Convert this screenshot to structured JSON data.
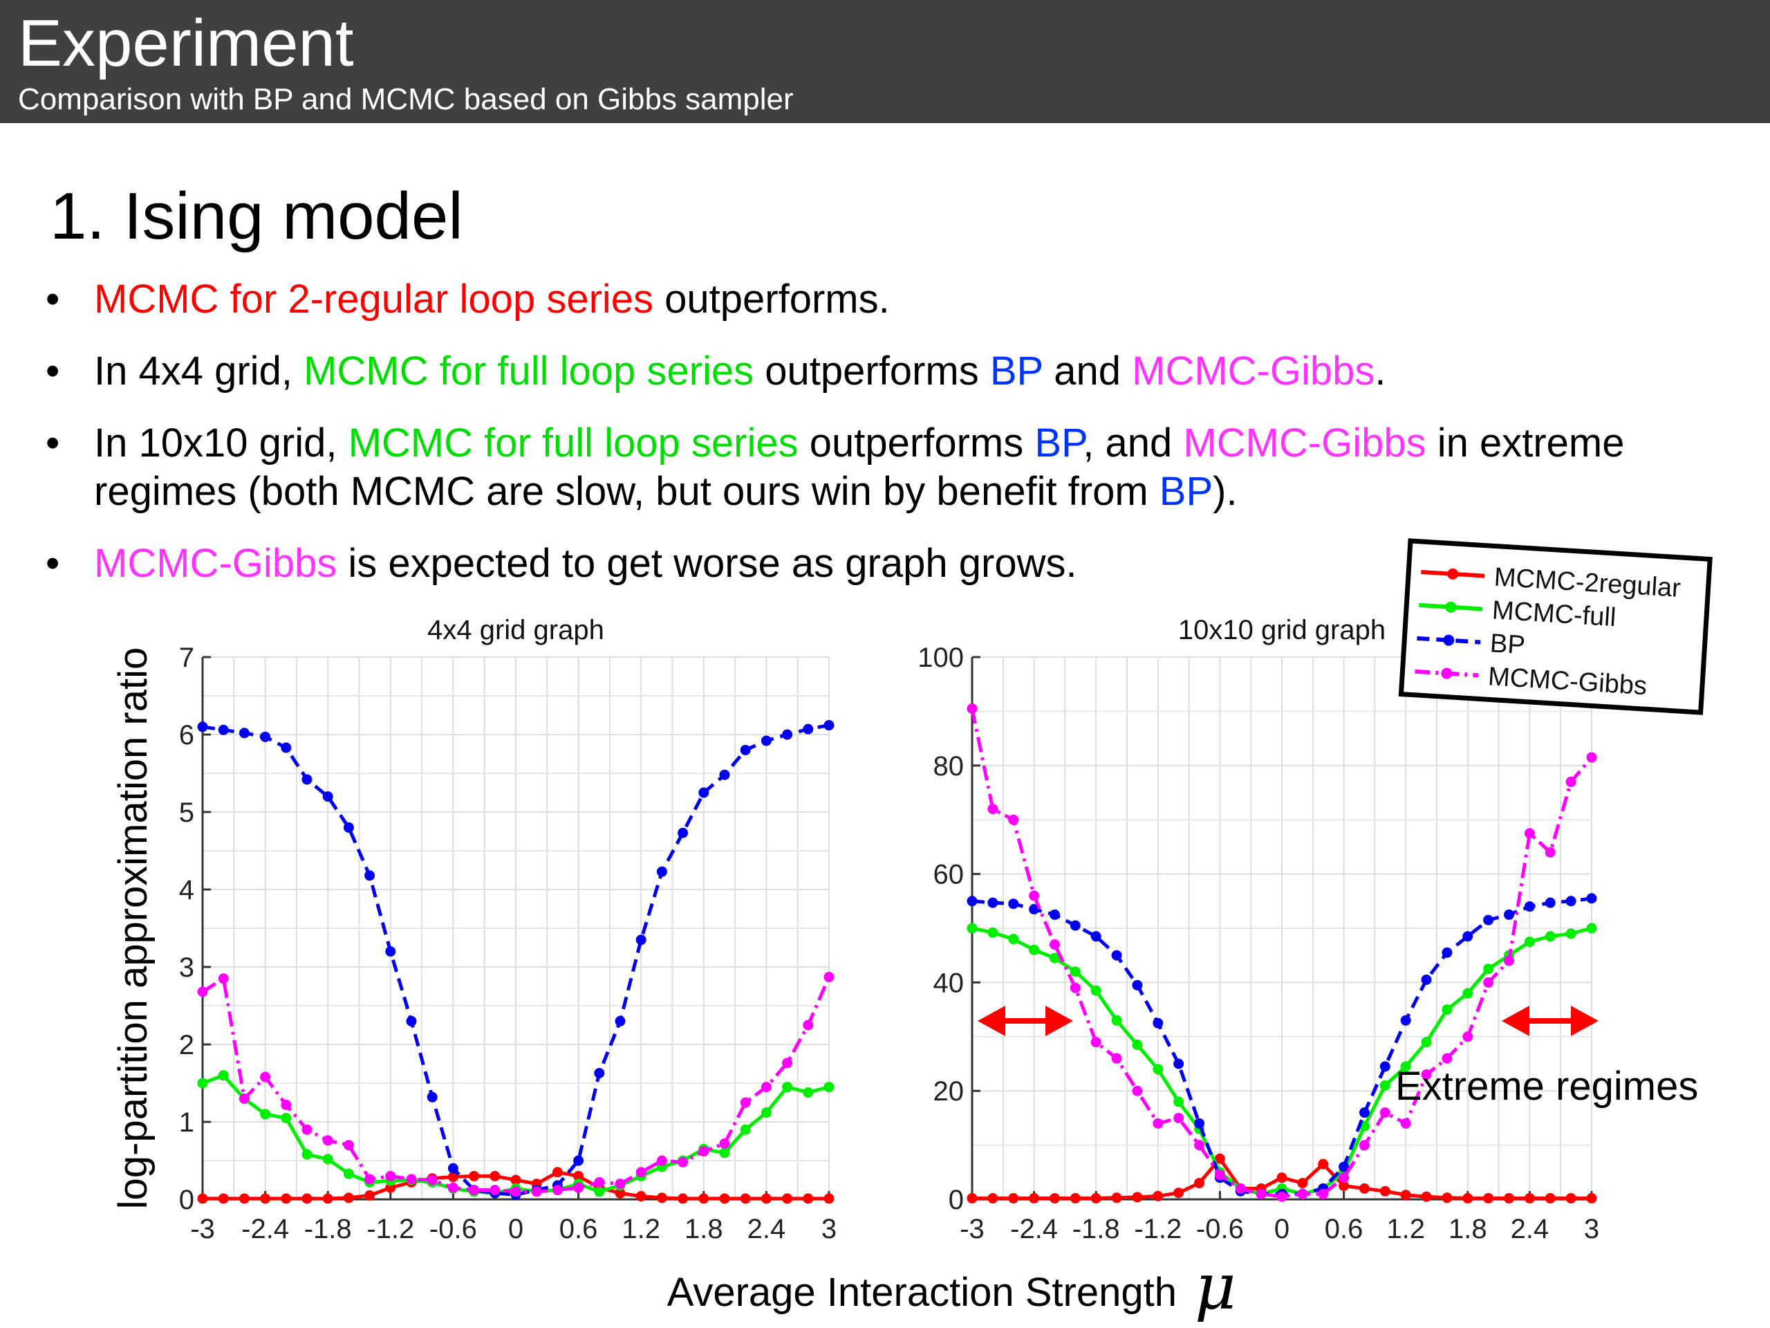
{
  "header": {
    "title": "Experiment",
    "subtitle": "Comparison with BP and MCMC based on Gibbs sampler"
  },
  "section_title": "1.  Ising model",
  "bullets": [
    [
      {
        "text": "MCMC for 2-regular loop series",
        "color": "#ff0000"
      },
      {
        "text": " outperforms.",
        "color": "#000000"
      }
    ],
    [
      {
        "text": "In 4x4 grid, ",
        "color": "#000000"
      },
      {
        "text": "MCMC for full loop series",
        "color": "#00dd00"
      },
      {
        "text": " outperforms ",
        "color": "#000000"
      },
      {
        "text": "BP",
        "color": "#0033ff"
      },
      {
        "text": " and ",
        "color": "#000000"
      },
      {
        "text": "MCMC-Gibbs",
        "color": "#ff33ff"
      },
      {
        "text": ".",
        "color": "#000000"
      }
    ],
    [
      {
        "text": "In 10x10 grid, ",
        "color": "#000000"
      },
      {
        "text": "MCMC for full loop series",
        "color": "#00dd00"
      },
      {
        "text": " outperforms ",
        "color": "#000000"
      },
      {
        "text": "BP",
        "color": "#0033ff"
      },
      {
        "text": ", and ",
        "color": "#000000"
      },
      {
        "text": "MCMC-Gibbs",
        "color": "#ff33ff"
      },
      {
        "text": " in extreme regimes (both MCMC are slow, but ours win by benefit from ",
        "color": "#000000"
      },
      {
        "text": "BP",
        "color": "#0033ff"
      },
      {
        "text": ").",
        "color": "#000000"
      }
    ],
    [
      {
        "text": "MCMC-Gibbs",
        "color": "#ff33ff"
      },
      {
        "text": " is expected to get worse as graph grows.",
        "color": "#000000"
      }
    ]
  ],
  "colors": {
    "MCMC-2regular": "#ff0000",
    "MCMC-full": "#00ee00",
    "BP": "#0000ee",
    "MCMC-Gibbs": "#ff00ff",
    "arrow": "#ff0000"
  },
  "legend": {
    "placement": "top-right",
    "entries": [
      "MCMC-2regular",
      "MCMC-full",
      "BP",
      "MCMC-Gibbs"
    ]
  },
  "shared_ylabel": "log-partition approximation ratio",
  "shared_xlabel": "Average Interaction Strength",
  "shared_xlabel_symbol": "μ",
  "annotation": "Extreme regimes",
  "chart_data": [
    {
      "type": "line",
      "title": "4x4 grid graph",
      "xlabel": "Average Interaction Strength μ",
      "ylabel": "log-partition approximation ratio",
      "xlim": [
        -3,
        3
      ],
      "ylim": [
        0,
        7
      ],
      "grid": true,
      "x_ticks": [
        "-3",
        "-2.4",
        "-1.8",
        "-1.2",
        "-0.6",
        "0",
        "0.6",
        "1.2",
        "1.8",
        "2.4",
        "3"
      ],
      "y_ticks": [
        "0",
        "1",
        "2",
        "3",
        "4",
        "5",
        "6",
        "7"
      ],
      "x": [
        -3,
        -2.8,
        -2.6,
        -2.4,
        -2.2,
        -2.0,
        -1.8,
        -1.6,
        -1.4,
        -1.2,
        -1.0,
        -0.8,
        -0.6,
        -0.4,
        -0.2,
        0,
        0.2,
        0.4,
        0.6,
        0.8,
        1.0,
        1.2,
        1.4,
        1.6,
        1.8,
        2.0,
        2.2,
        2.4,
        2.6,
        2.8,
        3.0
      ],
      "series": [
        {
          "name": "MCMC-2regular",
          "style": "solid",
          "values": [
            0.01,
            0.01,
            0.01,
            0.01,
            0.01,
            0.01,
            0.01,
            0.02,
            0.05,
            0.15,
            0.22,
            0.27,
            0.29,
            0.3,
            0.3,
            0.25,
            0.2,
            0.35,
            0.3,
            0.15,
            0.08,
            0.04,
            0.02,
            0.01,
            0.01,
            0.01,
            0.01,
            0.01,
            0.01,
            0.01,
            0.01
          ]
        },
        {
          "name": "MCMC-full",
          "style": "solid",
          "values": [
            1.5,
            1.6,
            1.3,
            1.1,
            1.05,
            0.58,
            0.52,
            0.33,
            0.22,
            0.24,
            0.25,
            0.22,
            0.14,
            0.1,
            0.08,
            0.14,
            0.1,
            0.12,
            0.2,
            0.1,
            0.18,
            0.3,
            0.42,
            0.5,
            0.65,
            0.6,
            0.9,
            1.12,
            1.45,
            1.38,
            1.45
          ]
        },
        {
          "name": "BP",
          "style": "dashed",
          "values": [
            6.1,
            6.06,
            6.02,
            5.97,
            5.83,
            5.42,
            5.2,
            4.8,
            4.18,
            3.2,
            2.3,
            1.32,
            0.4,
            0.12,
            0.08,
            0.06,
            0.12,
            0.18,
            0.5,
            1.63,
            2.3,
            3.35,
            4.23,
            4.73,
            5.25,
            5.48,
            5.8,
            5.92,
            6.0,
            6.07,
            6.12
          ]
        },
        {
          "name": "MCMC-Gibbs",
          "style": "dashed",
          "values": [
            2.68,
            2.85,
            1.3,
            1.58,
            1.22,
            0.9,
            0.76,
            0.7,
            0.26,
            0.3,
            0.26,
            0.25,
            0.15,
            0.12,
            0.12,
            0.1,
            0.1,
            0.12,
            0.15,
            0.22,
            0.2,
            0.35,
            0.5,
            0.48,
            0.62,
            0.72,
            1.25,
            1.45,
            1.76,
            2.25,
            2.87
          ]
        }
      ]
    },
    {
      "type": "line",
      "title": "10x10 grid graph",
      "xlabel": "Average Interaction Strength μ",
      "ylabel": "",
      "xlim": [
        -3,
        3
      ],
      "ylim": [
        0,
        100
      ],
      "grid": true,
      "x_ticks": [
        "-3",
        "-2.4",
        "-1.8",
        "-1.2",
        "-0.6",
        "0",
        "0.6",
        "1.2",
        "1.8",
        "2.4",
        "3"
      ],
      "y_ticks": [
        "0",
        "20",
        "40",
        "60",
        "80",
        "100"
      ],
      "x": [
        -3,
        -2.8,
        -2.6,
        -2.4,
        -2.2,
        -2.0,
        -1.8,
        -1.6,
        -1.4,
        -1.2,
        -1.0,
        -0.8,
        -0.6,
        -0.4,
        -0.2,
        0,
        0.2,
        0.4,
        0.6,
        0.8,
        1.0,
        1.2,
        1.4,
        1.6,
        1.8,
        2.0,
        2.2,
        2.4,
        2.6,
        2.8,
        3.0
      ],
      "series": [
        {
          "name": "MCMC-2regular",
          "style": "solid",
          "values": [
            0.2,
            0.2,
            0.2,
            0.2,
            0.2,
            0.2,
            0.2,
            0.3,
            0.4,
            0.6,
            1.2,
            3.0,
            7.5,
            2.0,
            2.0,
            4.0,
            3.0,
            6.5,
            2.5,
            2.0,
            1.5,
            0.8,
            0.5,
            0.3,
            0.2,
            0.2,
            0.2,
            0.2,
            0.2,
            0.2,
            0.2
          ]
        },
        {
          "name": "MCMC-full",
          "style": "solid",
          "values": [
            50,
            49.2,
            48,
            46,
            44.5,
            42,
            38.5,
            33,
            28.5,
            24,
            18,
            13,
            5,
            2,
            1,
            2,
            1,
            2,
            5,
            13.5,
            21,
            24.5,
            29,
            35,
            38,
            42.5,
            45,
            47.5,
            48.5,
            49,
            50
          ]
        },
        {
          "name": "BP",
          "style": "dashed",
          "values": [
            55,
            54.7,
            54.5,
            53.5,
            52.5,
            50.5,
            48.5,
            45,
            39.5,
            32.5,
            25,
            14,
            4,
            1.5,
            1,
            1,
            1,
            2,
            6,
            16,
            24.5,
            33,
            40.5,
            45.5,
            48.5,
            51.5,
            52.5,
            54,
            54.7,
            55,
            55.5
          ]
        },
        {
          "name": "MCMC-Gibbs",
          "style": "dashed",
          "values": [
            90.5,
            72,
            70,
            56,
            47,
            39,
            29,
            26,
            20,
            14,
            15,
            10,
            4.5,
            2,
            1,
            0.5,
            1,
            1,
            4,
            10,
            16,
            14,
            23,
            26,
            30,
            40,
            44,
            67.5,
            64,
            77,
            81.5
          ]
        }
      ]
    }
  ]
}
